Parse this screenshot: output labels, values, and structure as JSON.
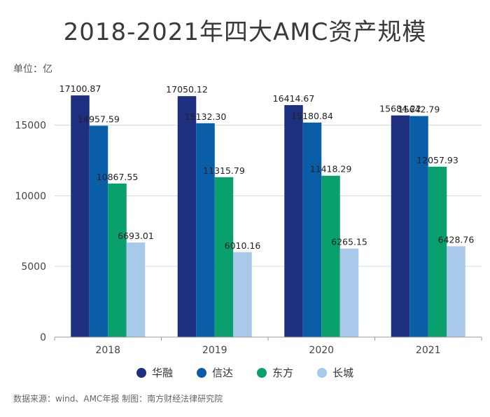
{
  "title": "2018-2021年四大AMC资产规模",
  "unit_label": "单位：亿",
  "source_note": "数据来源：wind、AMC年报  制图：南方财经法律研究院",
  "chart_data": {
    "type": "bar",
    "title": "2018-2021年四大AMC资产规模",
    "xlabel": "",
    "ylabel": "",
    "categories": [
      "2018",
      "2019",
      "2020",
      "2021"
    ],
    "ylim": [
      0,
      18000
    ],
    "yticks": [
      0,
      5000,
      10000,
      15000
    ],
    "grid": true,
    "legend_position": "bottom",
    "series": [
      {
        "name": "华融",
        "color": "#1f2f7f",
        "values": [
          17100.87,
          17050.12,
          16414.67,
          15684.22
        ],
        "labels": [
          "17100.87",
          "17050.12",
          "16414.67",
          "15684.22"
        ]
      },
      {
        "name": "信达",
        "color": "#0a5ea8",
        "values": [
          14957.59,
          15132.3,
          15180.84,
          15642.79
        ],
        "labels": [
          "14957.59",
          "15132.30",
          "15180.84",
          "15642.79"
        ]
      },
      {
        "name": "东方",
        "color": "#0aa06e",
        "values": [
          10867.55,
          11315.79,
          11418.29,
          12057.93
        ],
        "labels": [
          "10867.55",
          "11315.79",
          "11418.29",
          "12057.93"
        ]
      },
      {
        "name": "长城",
        "color": "#a9c9ea",
        "values": [
          6693.01,
          6010.16,
          6265.15,
          6428.76
        ],
        "labels": [
          "6693.01",
          "6010.16",
          "6265.15",
          "6428.76"
        ]
      }
    ]
  }
}
